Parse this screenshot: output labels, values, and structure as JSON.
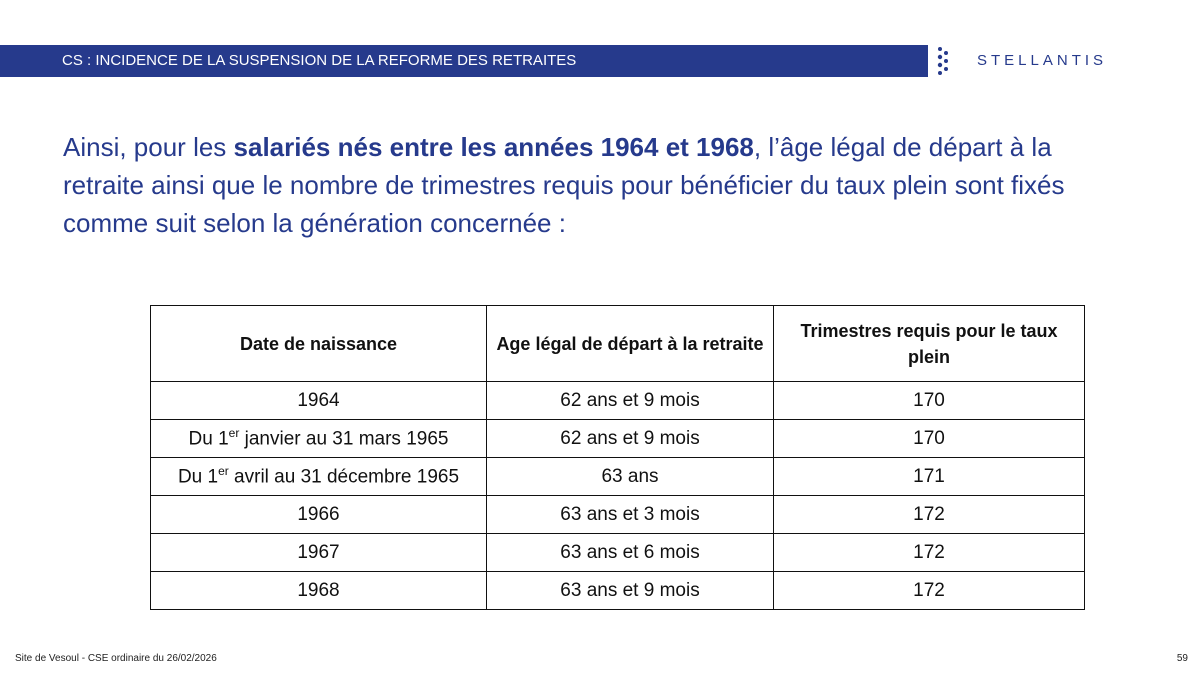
{
  "header": {
    "title": "CS : INCIDENCE DE LA SUSPENSION DE LA REFORME DES RETRAITES",
    "logo": "STELLANTIS"
  },
  "intro": {
    "parts": [
      "Ainsi, pour les ",
      "salariés nés entre les années 1964 et 1968",
      ", l’âge légal de départ à la retraite ainsi que le nombre de trimestres requis pour bénéficier du taux plein sont fixés comme suit selon la génération concernée :"
    ]
  },
  "table": {
    "columns": [
      "Date de naissance",
      "Age légal de départ à la retraite",
      "Trimestres requis pour le taux plein"
    ],
    "rows": [
      [
        1964,
        "62 ans et 9 mois",
        170
      ],
      [
        [
          "Du 1",
          "er",
          " janvier au 31 mars 1965"
        ],
        "62 ans et 9 mois",
        170
      ],
      [
        [
          "Du 1",
          "er",
          " avril au 31 décembre 1965"
        ],
        "63 ans",
        171
      ],
      [
        1966,
        "63 ans et 3 mois",
        172
      ],
      [
        1967,
        "63 ans et 6 mois",
        172
      ],
      [
        1968,
        "63 ans et 9 mois",
        172
      ]
    ]
  },
  "footer": {
    "left": "Site de Vesoul - CSE ordinaire du 26/02/2026",
    "page": "59"
  }
}
